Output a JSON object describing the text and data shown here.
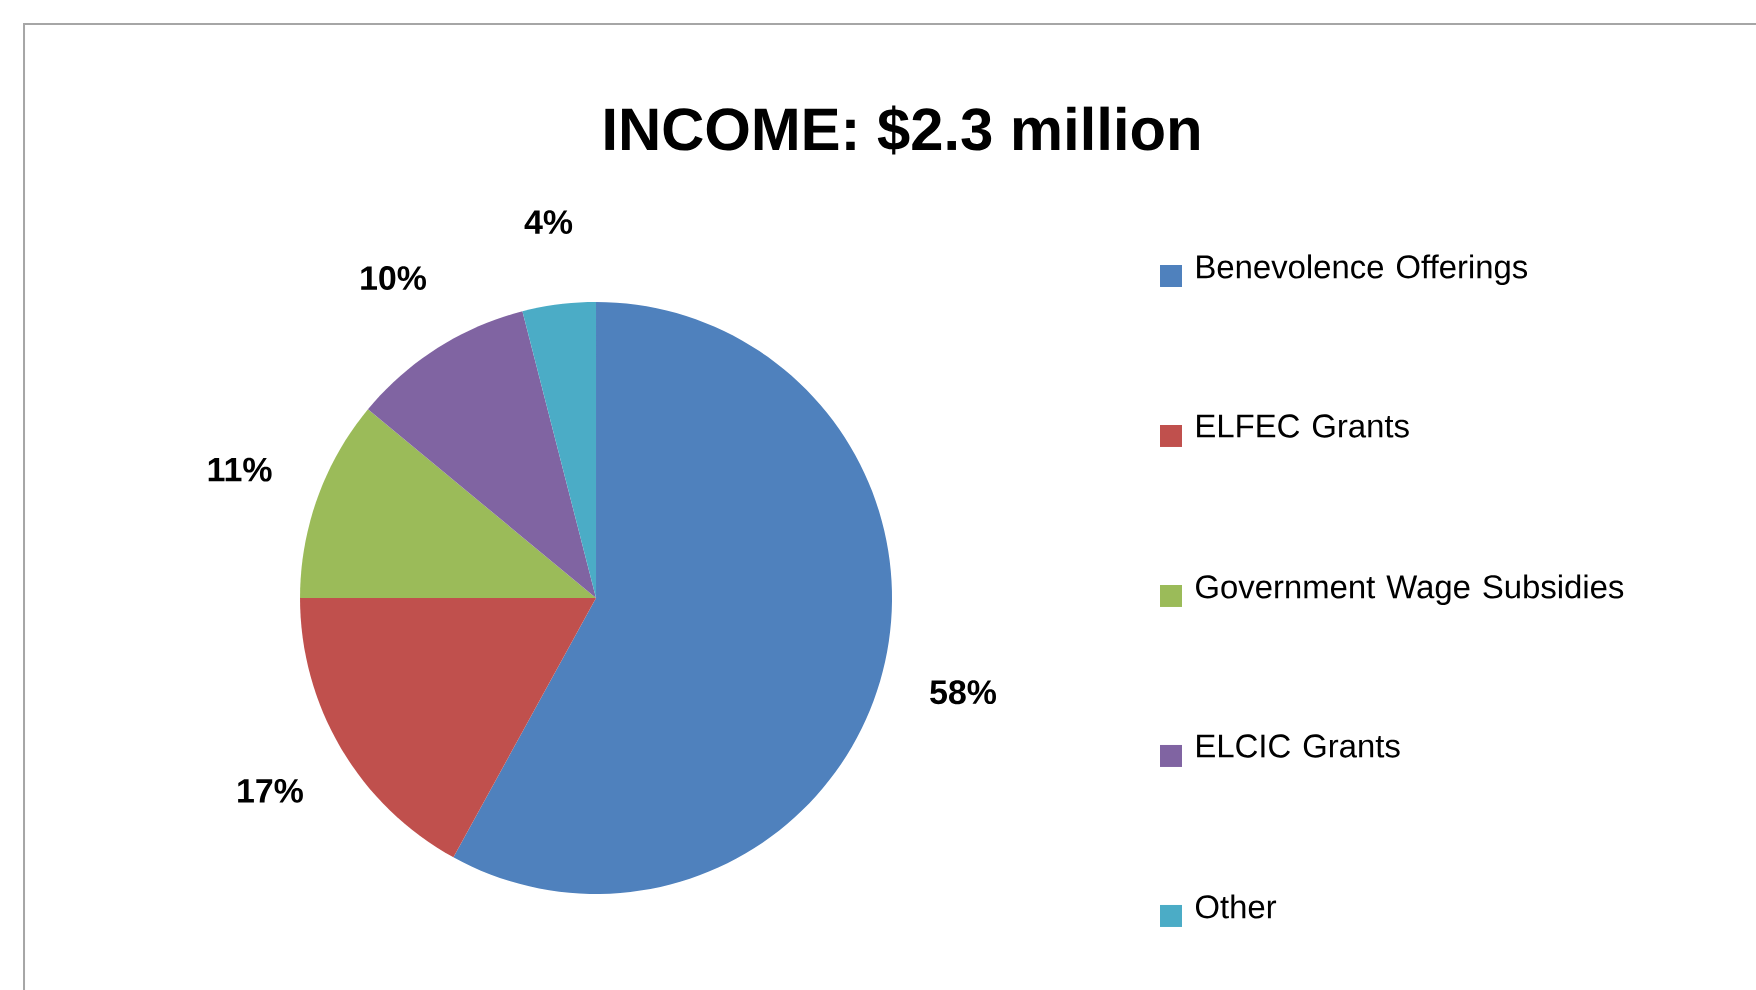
{
  "chart_data": {
    "type": "pie",
    "title": "INCOME: $2.3 million",
    "categories": [
      "Benevolence Offerings",
      "ELFEC Grants",
      "Government Wage Subsidies",
      "ELCIC Grants",
      "Other"
    ],
    "values": [
      58,
      17,
      11,
      10,
      4
    ],
    "value_labels": [
      "58%",
      "17%",
      "11%",
      "10%",
      "4%"
    ],
    "colors": [
      "#4f81bd",
      "#c0504d",
      "#9bbb59",
      "#8064a2",
      "#4bacc6"
    ],
    "legend": "right"
  }
}
